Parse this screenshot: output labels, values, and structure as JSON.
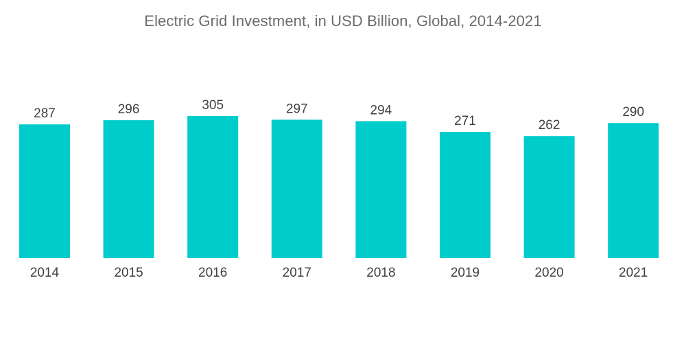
{
  "chart_data": {
    "type": "bar",
    "title": "Electric Grid Investment, in USD Billion, Global, 2014-2021",
    "xlabel": "",
    "ylabel": "",
    "categories": [
      "2014",
      "2015",
      "2016",
      "2017",
      "2018",
      "2019",
      "2020",
      "2021"
    ],
    "values": [
      287,
      296,
      305,
      297,
      294,
      271,
      262,
      290
    ],
    "value_labels": [
      "287",
      "296",
      "305",
      "297",
      "294",
      "271",
      "262",
      "290"
    ],
    "ylim": [
      0,
      305
    ],
    "grid": false,
    "legend": "none",
    "bar_color": "#00cccc",
    "text_color": "#404040",
    "title_color": "#6b6b6b"
  }
}
